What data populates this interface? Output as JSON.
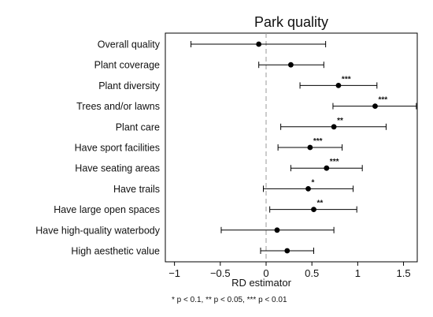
{
  "chart_data": {
    "type": "scatter",
    "title": "Park quality",
    "xlabel": "RD estimator",
    "xlim": [
      -1.1,
      1.65
    ],
    "xticks": [
      -1,
      -0.5,
      0,
      0.5,
      1,
      1.5
    ],
    "xtick_labels": [
      "−1",
      "−0.5",
      "0",
      "0.5",
      "1",
      "1.5"
    ],
    "reference_line": 0,
    "note": "* p < 0.1, ** p < 0.05, *** p < 0.01",
    "colors": {
      "marker": "#000000",
      "reference": "#999999"
    },
    "items": [
      {
        "label": "Overall quality",
        "estimate": -0.08,
        "ci": [
          -0.82,
          0.65
        ],
        "sig": ""
      },
      {
        "label": "Plant coverage",
        "estimate": 0.27,
        "ci": [
          -0.08,
          0.63
        ],
        "sig": ""
      },
      {
        "label": "Plant diversity",
        "estimate": 0.79,
        "ci": [
          0.37,
          1.21
        ],
        "sig": "***"
      },
      {
        "label": "Trees and/or lawns",
        "estimate": 1.19,
        "ci": [
          0.73,
          1.64
        ],
        "sig": "***"
      },
      {
        "label": "Plant care",
        "estimate": 0.74,
        "ci": [
          0.16,
          1.31
        ],
        "sig": "**"
      },
      {
        "label": "Have sport facilities",
        "estimate": 0.48,
        "ci": [
          0.13,
          0.83
        ],
        "sig": "***"
      },
      {
        "label": "Have seating areas",
        "estimate": 0.66,
        "ci": [
          0.27,
          1.05
        ],
        "sig": "***"
      },
      {
        "label": "Have trails",
        "estimate": 0.46,
        "ci": [
          -0.03,
          0.95
        ],
        "sig": "*"
      },
      {
        "label": "Have large open spaces",
        "estimate": 0.52,
        "ci": [
          0.04,
          0.99
        ],
        "sig": "**"
      },
      {
        "label": "Have high-quality waterbody",
        "estimate": 0.12,
        "ci": [
          -0.49,
          0.74
        ],
        "sig": ""
      },
      {
        "label": "High aesthetic value",
        "estimate": 0.23,
        "ci": [
          -0.06,
          0.52
        ],
        "sig": ""
      }
    ]
  }
}
